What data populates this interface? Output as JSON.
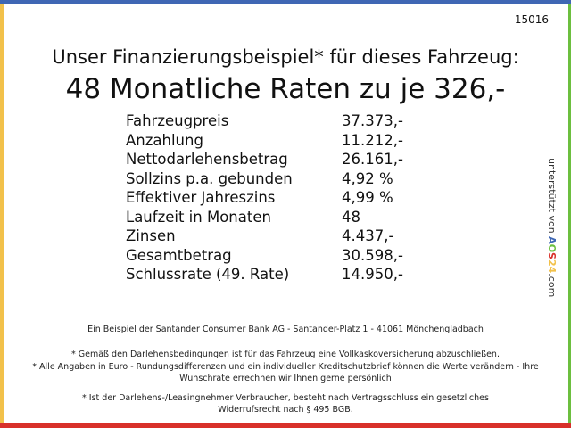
{
  "id": "15016",
  "headline": "Unser Finanzierungsbeispiel* für dieses Fahrzeug:",
  "subheadline": "48 Monatliche Raten zu je 326,-",
  "rows": [
    {
      "label": "Fahrzeugpreis",
      "value": "37.373,-"
    },
    {
      "label": "Anzahlung",
      "value": "11.212,-"
    },
    {
      "label": "Nettodarlehensbetrag",
      "value": "26.161,-"
    },
    {
      "label": "Sollzins p.a. gebunden",
      "value": "4,92 %"
    },
    {
      "label": "Effektiver Jahreszins",
      "value": "4,99 %"
    },
    {
      "label": "Laufzeit in Monaten",
      "value": "48"
    },
    {
      "label": "Zinsen",
      "value": "4.437,-"
    },
    {
      "label": "Gesamtbetrag",
      "value": "30.598,-"
    },
    {
      "label": "Schlussrate (49. Rate)",
      "value": "14.950,-"
    }
  ],
  "sponsor": {
    "prefix": "unterstützt von",
    "logo": "AOS24",
    "suffix": ".com"
  },
  "footer": {
    "bank": "Ein Beispiel der Santander Consumer Bank AG - Santander-Platz 1 - 41061 Mönchengladbach",
    "note1": "* Gemäß den Darlehensbedingungen ist für das Fahrzeug eine Vollkaskoversicherung abzuschließen.",
    "note2": "* Alle Angaben in Euro - Rundungsdifferenzen und ein individueller Kreditschutzbrief können die Werte verändern - Ihre Wunschrate errechnen wir Ihnen gerne persönlich",
    "note3": "* Ist der Darlehens-/Leasingnehmer Verbraucher, besteht nach Vertragsschluss ein gesetzliches Widerrufsrecht nach § 495 BGB."
  },
  "colors": {
    "top": "#3f67b4",
    "left": "#f2c14a",
    "right": "#6cbf3f",
    "bottom": "#d8302a"
  }
}
